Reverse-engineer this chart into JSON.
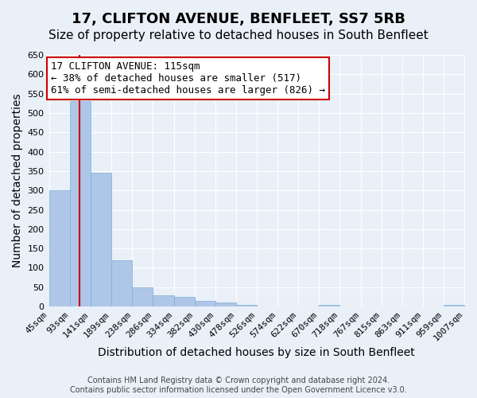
{
  "title": "17, CLIFTON AVENUE, BENFLEET, SS7 5RB",
  "subtitle": "Size of property relative to detached houses in South Benfleet",
  "xlabel": "Distribution of detached houses by size in South Benfleet",
  "ylabel": "Number of detached properties",
  "footer_line1": "Contains HM Land Registry data © Crown copyright and database right 2024.",
  "footer_line2": "Contains public sector information licensed under the Open Government Licence v3.0.",
  "annotation_line1": "17 CLIFTON AVENUE: 115sqm",
  "annotation_line2": "← 38% of detached houses are smaller (517)",
  "annotation_line3": "61% of semi-detached houses are larger (826) →",
  "property_size": 115,
  "bar_lefts": [
    45,
    93,
    141,
    189,
    238,
    286,
    334,
    382,
    430,
    478,
    526,
    574,
    622,
    670,
    718,
    767,
    815,
    863,
    911,
    959
  ],
  "bar_widths": [
    48,
    48,
    48,
    49,
    48,
    48,
    48,
    48,
    48,
    48,
    48,
    48,
    48,
    48,
    49,
    48,
    48,
    48,
    48,
    48
  ],
  "bar_labels": [
    "45sqm",
    "93sqm",
    "141sqm",
    "189sqm",
    "238sqm",
    "286sqm",
    "334sqm",
    "382sqm",
    "430sqm",
    "478sqm",
    "526sqm",
    "574sqm",
    "622sqm",
    "670sqm",
    "718sqm",
    "767sqm",
    "815sqm",
    "863sqm",
    "911sqm",
    "959sqm",
    "1007sqm"
  ],
  "bar_heights": [
    300,
    530,
    345,
    120,
    50,
    30,
    25,
    15,
    10,
    5,
    0,
    0,
    0,
    5,
    0,
    0,
    0,
    0,
    0,
    5
  ],
  "bar_color": "#aec6e8",
  "bar_edgecolor": "#7fafd4",
  "vline_color": "#cc0000",
  "vline_x": 115,
  "ylim": [
    0,
    650
  ],
  "yticks": [
    0,
    50,
    100,
    150,
    200,
    250,
    300,
    350,
    400,
    450,
    500,
    550,
    600,
    650
  ],
  "bg_color": "#eaf0f8",
  "plot_bg_color": "#eaf0f8",
  "grid_color": "#ffffff",
  "annotation_box_color": "#cc0000",
  "title_fontsize": 13,
  "subtitle_fontsize": 11,
  "axis_label_fontsize": 10,
  "tick_fontsize": 8,
  "annotation_fontsize": 9
}
